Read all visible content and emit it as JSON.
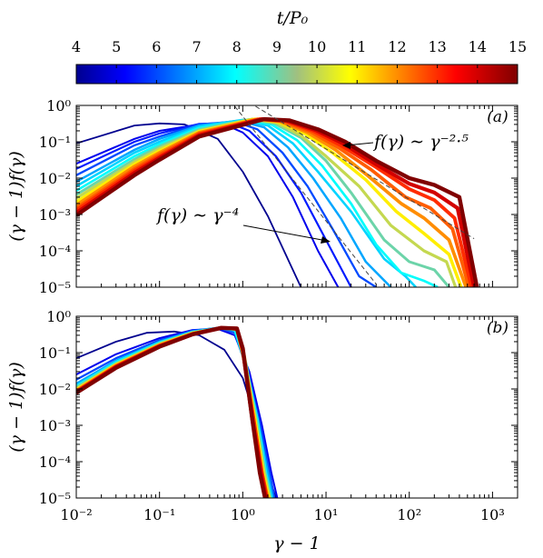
{
  "colorbar": {
    "label": "t/P₀",
    "range": [
      4,
      15
    ],
    "ticks": [
      "4",
      "5",
      "6",
      "7",
      "8",
      "9",
      "10",
      "11",
      "12",
      "13",
      "14",
      "15"
    ],
    "colormap": "jet"
  },
  "chart_data": [
    {
      "panel": "(a)",
      "type": "line",
      "xscale": "log",
      "yscale": "log",
      "xlim": [
        0.01,
        2000
      ],
      "ylim": [
        1e-05,
        1
      ],
      "xlabel": "γ − 1",
      "ylabel": "(γ − 1)f(γ)",
      "xtick_labels": [
        "10⁻²",
        "10⁻¹",
        "10⁰",
        "10¹",
        "10²",
        "10³"
      ],
      "ytick_labels": [
        "10⁰",
        "10⁻¹",
        "10⁻²",
        "10⁻³",
        "10⁻⁴",
        "10⁻⁵"
      ],
      "series_note": "curves coloured by t/P0 from 4 (dark blue) to 15 (dark red)",
      "series": [
        {
          "t": 4.0,
          "x": [
            0.01,
            0.05,
            0.1,
            0.2,
            0.5,
            1.0,
            2.0,
            5.0
          ],
          "y": [
            0.09,
            0.28,
            0.32,
            0.3,
            0.12,
            0.015,
            0.0009,
            1e-05
          ]
        },
        {
          "t": 5.0,
          "x": [
            0.01,
            0.05,
            0.1,
            0.3,
            0.6,
            1.0,
            2.0,
            4.0,
            8.0,
            14.0
          ],
          "y": [
            0.025,
            0.12,
            0.2,
            0.3,
            0.3,
            0.18,
            0.04,
            0.003,
            0.0001,
            1e-05
          ]
        },
        {
          "t": 5.5,
          "x": [
            0.01,
            0.05,
            0.1,
            0.3,
            0.7,
            1.2,
            2.5,
            5.0,
            10.0,
            20.0
          ],
          "y": [
            0.018,
            0.1,
            0.17,
            0.31,
            0.33,
            0.2,
            0.04,
            0.004,
            0.0002,
            1e-05
          ]
        },
        {
          "t": 6.0,
          "x": [
            0.01,
            0.05,
            0.1,
            0.3,
            0.8,
            1.5,
            3.0,
            6.0,
            12.0,
            25.0,
            40.0
          ],
          "y": [
            0.012,
            0.08,
            0.14,
            0.3,
            0.36,
            0.22,
            0.05,
            0.006,
            0.0004,
            2e-05,
            1e-05
          ]
        },
        {
          "t": 7.0,
          "x": [
            0.01,
            0.05,
            0.1,
            0.3,
            0.9,
            1.8,
            3.5,
            7.0,
            15.0,
            30.0,
            60.0
          ],
          "y": [
            0.008,
            0.06,
            0.12,
            0.28,
            0.38,
            0.25,
            0.07,
            0.01,
            0.0008,
            5e-05,
            1e-05
          ]
        },
        {
          "t": 7.5,
          "x": [
            0.01,
            0.05,
            0.1,
            0.3,
            1.0,
            2.0,
            4.0,
            8.0,
            20.0,
            50.0,
            90.0,
            120.0
          ],
          "y": [
            0.006,
            0.05,
            0.1,
            0.26,
            0.4,
            0.28,
            0.09,
            0.015,
            0.0012,
            6e-05,
            2e-05,
            1e-05
          ]
        },
        {
          "t": 8.0,
          "x": [
            0.01,
            0.05,
            0.1,
            0.3,
            1.1,
            2.2,
            4.5,
            9.0,
            20.0,
            40.0,
            80.0,
            150.0,
            220.0
          ],
          "y": [
            0.0045,
            0.04,
            0.085,
            0.24,
            0.4,
            0.3,
            0.11,
            0.022,
            0.002,
            0.00015,
            2.5e-05,
            1.5e-05,
            1e-05
          ]
        },
        {
          "t": 9.0,
          "x": [
            0.01,
            0.05,
            0.1,
            0.3,
            1.2,
            2.4,
            5.0,
            10.0,
            20.0,
            50.0,
            100.0,
            200.0,
            300.0
          ],
          "y": [
            0.0035,
            0.033,
            0.075,
            0.22,
            0.41,
            0.32,
            0.13,
            0.03,
            0.004,
            0.0002,
            5e-05,
            3e-05,
            1e-05
          ]
        },
        {
          "t": 10.0,
          "x": [
            0.01,
            0.05,
            0.1,
            0.3,
            1.3,
            2.5,
            5.0,
            10.0,
            25.0,
            60.0,
            150.0,
            280.0,
            360.0
          ],
          "y": [
            0.0028,
            0.028,
            0.065,
            0.2,
            0.42,
            0.34,
            0.15,
            0.04,
            0.006,
            0.0005,
            0.0001,
            5e-05,
            1e-05
          ]
        },
        {
          "t": 11.0,
          "x": [
            0.01,
            0.05,
            0.1,
            0.3,
            1.4,
            2.7,
            5.5,
            12.0,
            30.0,
            70.0,
            150.0,
            300.0,
            420.0
          ],
          "y": [
            0.0022,
            0.024,
            0.056,
            0.19,
            0.42,
            0.35,
            0.17,
            0.05,
            0.009,
            0.0012,
            0.0003,
            8e-05,
            1e-05
          ]
        },
        {
          "t": 12.0,
          "x": [
            0.01,
            0.05,
            0.1,
            0.3,
            1.5,
            2.8,
            6.0,
            13.0,
            30.0,
            80.0,
            150.0,
            300.0,
            480.0
          ],
          "y": [
            0.0018,
            0.021,
            0.05,
            0.18,
            0.42,
            0.36,
            0.18,
            0.06,
            0.013,
            0.002,
            0.0008,
            0.0002,
            1e-05
          ]
        },
        {
          "t": 12.5,
          "x": [
            0.01,
            0.05,
            0.1,
            0.3,
            1.6,
            3.0,
            6.5,
            14.0,
            35.0,
            90.0,
            180.0,
            330.0,
            520.0
          ],
          "y": [
            0.0015,
            0.018,
            0.045,
            0.17,
            0.42,
            0.37,
            0.19,
            0.07,
            0.017,
            0.003,
            0.0015,
            0.0004,
            1e-05
          ]
        },
        {
          "t": 13.0,
          "x": [
            0.01,
            0.05,
            0.1,
            0.3,
            1.6,
            3.2,
            7.0,
            15.0,
            40.0,
            100.0,
            200.0,
            350.0,
            560.0
          ],
          "y": [
            0.0013,
            0.016,
            0.04,
            0.16,
            0.42,
            0.38,
            0.2,
            0.08,
            0.02,
            0.005,
            0.0025,
            0.0008,
            1e-05
          ]
        },
        {
          "t": 14.0,
          "x": [
            0.01,
            0.05,
            0.1,
            0.3,
            1.7,
            3.4,
            7.5,
            16.0,
            40.0,
            100.0,
            200.0,
            380.0,
            600.0
          ],
          "y": [
            0.0011,
            0.014,
            0.036,
            0.15,
            0.42,
            0.38,
            0.21,
            0.09,
            0.024,
            0.007,
            0.004,
            0.0015,
            1e-05
          ]
        },
        {
          "t": 15.0,
          "x": [
            0.01,
            0.05,
            0.1,
            0.3,
            1.8,
            3.6,
            8.0,
            17.0,
            40.0,
            100.0,
            200.0,
            400.0,
            650.0
          ],
          "y": [
            0.00095,
            0.012,
            0.032,
            0.14,
            0.42,
            0.39,
            0.22,
            0.1,
            0.03,
            0.01,
            0.0065,
            0.003,
            1e-05
          ]
        }
      ],
      "reference_lines": [
        {
          "label": "f(γ) ∼ γ⁻²·⁵",
          "x": [
            1.2,
            600.0
          ],
          "y": [
            1.2,
            0.000216
          ],
          "style": "dashed"
        },
        {
          "label": "f(γ) ∼ γ⁻⁴",
          "x": [
            0.8,
            40.0
          ],
          "y": [
            0.95,
            1.22e-05
          ],
          "style": "dashed"
        }
      ]
    },
    {
      "panel": "(b)",
      "type": "line",
      "xscale": "log",
      "yscale": "log",
      "xlim": [
        0.01,
        2000
      ],
      "ylim": [
        1e-05,
        1
      ],
      "xlabel": "γ − 1",
      "ylabel": "(γ − 1)f(γ)",
      "xtick_labels": [
        "10⁻²",
        "10⁻¹",
        "10⁰",
        "10¹",
        "10²",
        "10³"
      ],
      "ytick_labels": [
        "10⁰",
        "10⁻¹",
        "10⁻²",
        "10⁻³",
        "10⁻⁴",
        "10⁻⁵"
      ],
      "series": [
        {
          "t": 4.0,
          "x": [
            0.01,
            0.03,
            0.07,
            0.15,
            0.3,
            0.6,
            1.0,
            1.5,
            2.0,
            2.5
          ],
          "y": [
            0.07,
            0.2,
            0.35,
            0.38,
            0.3,
            0.12,
            0.02,
            0.001,
            5e-05,
            1e-05
          ]
        },
        {
          "t": 5.0,
          "x": [
            0.01,
            0.03,
            0.1,
            0.25,
            0.5,
            0.8,
            1.2,
            1.7,
            2.2,
            2.6
          ],
          "y": [
            0.025,
            0.09,
            0.25,
            0.42,
            0.45,
            0.3,
            0.03,
            0.001,
            5e-05,
            1e-05
          ]
        },
        {
          "t": 6.0,
          "x": [
            0.01,
            0.03,
            0.1,
            0.25,
            0.5,
            0.8,
            1.1,
            1.6,
            2.1,
            2.4
          ],
          "y": [
            0.018,
            0.07,
            0.22,
            0.4,
            0.48,
            0.35,
            0.04,
            0.0012,
            5e-05,
            1e-05
          ]
        },
        {
          "t": 7.0,
          "x": [
            0.01,
            0.03,
            0.1,
            0.25,
            0.5,
            0.8,
            1.1,
            1.5,
            2.0,
            2.3
          ],
          "y": [
            0.014,
            0.06,
            0.2,
            0.38,
            0.48,
            0.4,
            0.05,
            0.0015,
            5e-05,
            1e-05
          ]
        },
        {
          "t": 8.0,
          "x": [
            0.01,
            0.03,
            0.1,
            0.25,
            0.5,
            0.8,
            1.05,
            1.5,
            1.9,
            2.2
          ],
          "y": [
            0.012,
            0.055,
            0.19,
            0.37,
            0.48,
            0.42,
            0.06,
            0.0015,
            5e-05,
            1e-05
          ]
        },
        {
          "t": 9.0,
          "x": [
            0.01,
            0.03,
            0.1,
            0.25,
            0.55,
            0.85,
            1.05,
            1.45,
            1.85,
            2.15
          ],
          "y": [
            0.011,
            0.05,
            0.18,
            0.36,
            0.48,
            0.43,
            0.07,
            0.0015,
            5e-05,
            1e-05
          ]
        },
        {
          "t": 10.0,
          "x": [
            0.01,
            0.03,
            0.1,
            0.25,
            0.55,
            0.85,
            1.05,
            1.4,
            1.8,
            2.1
          ],
          "y": [
            0.01,
            0.048,
            0.17,
            0.35,
            0.48,
            0.44,
            0.08,
            0.0015,
            5e-05,
            1e-05
          ]
        },
        {
          "t": 11.0,
          "x": [
            0.01,
            0.03,
            0.1,
            0.25,
            0.55,
            0.85,
            1.0,
            1.4,
            1.75,
            2.05
          ],
          "y": [
            0.0095,
            0.046,
            0.165,
            0.34,
            0.48,
            0.44,
            0.09,
            0.0015,
            5e-05,
            1e-05
          ]
        },
        {
          "t": 12.0,
          "x": [
            0.01,
            0.03,
            0.1,
            0.25,
            0.55,
            0.85,
            1.0,
            1.35,
            1.7,
            2.0
          ],
          "y": [
            0.009,
            0.044,
            0.16,
            0.33,
            0.48,
            0.45,
            0.1,
            0.0015,
            5e-05,
            1e-05
          ]
        },
        {
          "t": 13.0,
          "x": [
            0.01,
            0.03,
            0.1,
            0.25,
            0.55,
            0.85,
            1.0,
            1.35,
            1.7,
            1.95
          ],
          "y": [
            0.0085,
            0.042,
            0.155,
            0.33,
            0.48,
            0.45,
            0.11,
            0.0015,
            5e-05,
            1e-05
          ]
        },
        {
          "t": 14.0,
          "x": [
            0.01,
            0.03,
            0.1,
            0.25,
            0.55,
            0.85,
            1.0,
            1.3,
            1.65,
            1.9
          ],
          "y": [
            0.008,
            0.04,
            0.15,
            0.32,
            0.48,
            0.46,
            0.12,
            0.0015,
            5e-05,
            1e-05
          ]
        },
        {
          "t": 15.0,
          "x": [
            0.01,
            0.03,
            0.1,
            0.25,
            0.55,
            0.85,
            1.0,
            1.3,
            1.6,
            1.85
          ],
          "y": [
            0.0078,
            0.038,
            0.145,
            0.32,
            0.48,
            0.46,
            0.13,
            0.0015,
            5e-05,
            1e-05
          ]
        }
      ]
    }
  ]
}
